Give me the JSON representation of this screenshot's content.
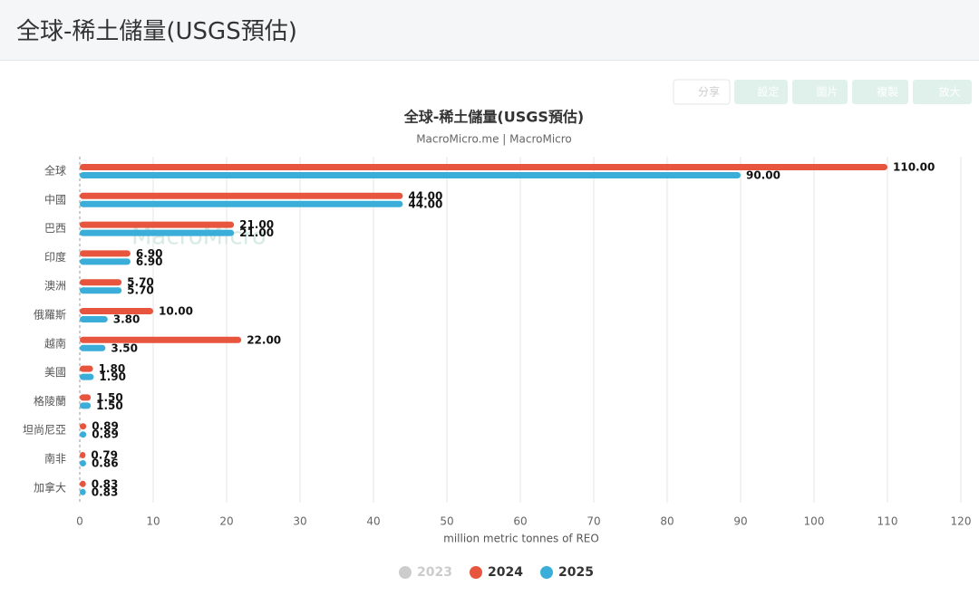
{
  "header": {
    "title": "全球-稀土儲量(USGS預估)"
  },
  "toolbar": [
    "分享",
    "設定",
    "圖片",
    "複製",
    "放大"
  ],
  "chart_data": {
    "type": "hbar",
    "title": "全球-稀土儲量(USGS預估)",
    "subtitle": "MacroMicro.me | MacroMicro",
    "watermark": "MacroMicro",
    "x_label": "million metric tonnes of REO",
    "categories": [
      "全球",
      "中國",
      "巴西",
      "印度",
      "澳洲",
      "俄羅斯",
      "越南",
      "美國",
      "格陵蘭",
      "坦尚尼亞",
      "南非",
      "加拿大"
    ],
    "series": [
      {
        "name": "2023",
        "color": "#cccccc",
        "hidden": true,
        "values": [
          null,
          null,
          null,
          null,
          null,
          null,
          null,
          null,
          null,
          null,
          null,
          null
        ]
      },
      {
        "name": "2024",
        "color": "#e8553e",
        "values": [
          110,
          44,
          21,
          6.9,
          5.7,
          10,
          22,
          1.8,
          1.5,
          0.89,
          0.79,
          0.83
        ],
        "value_labels": [
          "110.00",
          "44.00",
          "21.00",
          "6.90",
          "5.70",
          "10.00",
          "22.00",
          "1.80",
          "1.50",
          "0.89",
          "0.79",
          "0.83"
        ]
      },
      {
        "name": "2025",
        "color": "#3aaed8",
        "values": [
          90,
          44,
          21,
          6.9,
          5.7,
          3.8,
          3.5,
          1.9,
          1.5,
          0.89,
          0.86,
          0.83
        ],
        "value_labels": [
          "90.00",
          "44.00",
          "21.00",
          "6.90",
          "5.70",
          "3.80",
          "3.50",
          "1.90",
          "1.50",
          "0.89",
          "0.86",
          "0.83"
        ]
      }
    ],
    "xlim": [
      0,
      120
    ],
    "xticks": [
      0,
      10,
      20,
      30,
      40,
      50,
      60,
      70,
      80,
      90,
      100,
      110,
      120
    ],
    "grid": true,
    "legend": "bottom"
  }
}
